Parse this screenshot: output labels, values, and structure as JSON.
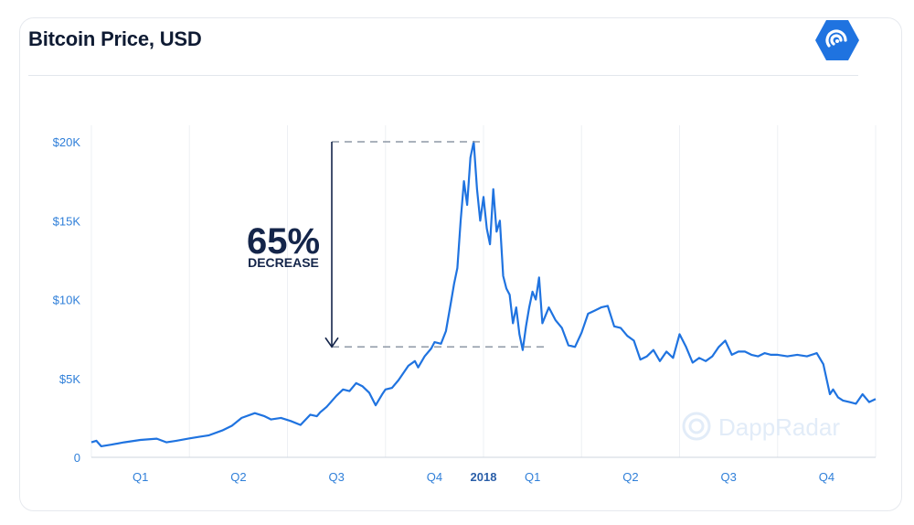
{
  "header": {
    "title": "Bitcoin Price, USD",
    "logo_icon": "dappradar-logo-icon"
  },
  "colors": {
    "line": "#1f73e0",
    "axis_text": "#2f7fd9",
    "annotation": "#14254a",
    "logo": "#1f73e0"
  },
  "chart_data": {
    "type": "line",
    "title": "Bitcoin Price, USD",
    "xlabel": "",
    "ylabel": "",
    "x_unit": "months since Jan 2017",
    "xlim": [
      0,
      24
    ],
    "ylim": [
      0,
      20000
    ],
    "y_ticks": [
      {
        "value": 0,
        "label": "0"
      },
      {
        "value": 5000,
        "label": "$5K"
      },
      {
        "value": 10000,
        "label": "$10K"
      },
      {
        "value": 15000,
        "label": "$15K"
      },
      {
        "value": 20000,
        "label": "$20K"
      }
    ],
    "x_ticks": [
      {
        "value": 1.5,
        "label": "Q1",
        "bold": false
      },
      {
        "value": 4.5,
        "label": "Q2",
        "bold": false
      },
      {
        "value": 7.5,
        "label": "Q3",
        "bold": false
      },
      {
        "value": 10.5,
        "label": "Q4",
        "bold": false
      },
      {
        "value": 12,
        "label": "2018",
        "bold": true
      },
      {
        "value": 13.5,
        "label": "Q1",
        "bold": false
      },
      {
        "value": 16.5,
        "label": "Q2",
        "bold": false
      },
      {
        "value": 19.5,
        "label": "Q3",
        "bold": false
      },
      {
        "value": 22.5,
        "label": "Q4",
        "bold": false
      }
    ],
    "grid": true,
    "legend": "none",
    "series": [
      {
        "x": [
          0,
          0.15,
          0.3,
          0.6,
          1.0,
          1.5,
          2.0,
          2.3,
          2.6,
          3.0,
          3.3,
          3.6,
          4.0,
          4.3,
          4.6,
          5.0,
          5.3,
          5.5,
          5.8,
          6.1,
          6.4,
          6.7,
          6.9,
          7.0,
          7.2,
          7.5,
          7.7,
          7.9,
          8.1,
          8.3,
          8.5,
          8.7,
          8.9,
          9.0,
          9.2,
          9.4,
          9.7,
          9.9,
          10.0,
          10.2,
          10.4,
          10.5,
          10.7,
          10.85,
          11.0,
          11.1,
          11.2,
          11.3,
          11.4,
          11.5,
          11.6,
          11.7,
          11.8,
          11.9,
          12.0,
          12.1,
          12.2,
          12.3,
          12.4,
          12.5,
          12.6,
          12.7,
          12.8,
          12.9,
          13.0,
          13.1,
          13.2,
          13.3,
          13.4,
          13.5,
          13.6,
          13.7,
          13.8,
          14.0,
          14.2,
          14.4,
          14.6,
          14.8,
          15.0,
          15.2,
          15.4,
          15.6,
          15.8,
          16.0,
          16.2,
          16.4,
          16.6,
          16.8,
          17.0,
          17.2,
          17.4,
          17.6,
          17.8,
          18.0,
          18.2,
          18.4,
          18.6,
          18.8,
          19.0,
          19.2,
          19.4,
          19.6,
          19.8,
          20.0,
          20.2,
          20.4,
          20.6,
          20.8,
          21.0,
          21.3,
          21.6,
          21.9,
          22.2,
          22.4,
          22.6,
          22.7,
          22.85,
          23.0,
          23.2,
          23.4,
          23.6,
          23.8,
          24.0
        ],
        "values": [
          950,
          1050,
          700,
          800,
          950,
          1100,
          1180,
          950,
          1050,
          1200,
          1300,
          1400,
          1700,
          2000,
          2500,
          2800,
          2600,
          2400,
          2500,
          2300,
          2050,
          2700,
          2600,
          2850,
          3200,
          3900,
          4300,
          4200,
          4700,
          4500,
          4100,
          3300,
          4000,
          4300,
          4400,
          4900,
          5800,
          6100,
          5700,
          6400,
          6900,
          7300,
          7200,
          8000,
          9800,
          11000,
          12000,
          15000,
          17500,
          16000,
          19000,
          20000,
          17000,
          15000,
          16500,
          14500,
          13500,
          17000,
          14300,
          15000,
          11500,
          10700,
          10300,
          8500,
          9500,
          7800,
          6800,
          8300,
          9500,
          10500,
          10000,
          11400,
          8500,
          9500,
          8700,
          8200,
          7100,
          7000,
          7900,
          9100,
          9300,
          9500,
          9600,
          8300,
          8200,
          7700,
          7400,
          6200,
          6400,
          6800,
          6100,
          6700,
          6300,
          7800,
          7000,
          6000,
          6300,
          6100,
          6400,
          7000,
          7400,
          6500,
          6700,
          6700,
          6500,
          6400,
          6600,
          6500,
          6500,
          6400,
          6500,
          6400,
          6600,
          5900,
          4000,
          4300,
          3800,
          3600,
          3500,
          3400,
          4000,
          3500,
          3700
        ]
      }
    ],
    "annotations": [
      {
        "type": "range",
        "from_value": 20000,
        "to_value": 7000,
        "big_text": "65%",
        "small_text": "DECREASE"
      }
    ]
  },
  "watermark": {
    "text": "DappRadar",
    "icon": "dappradar-watermark-icon"
  }
}
